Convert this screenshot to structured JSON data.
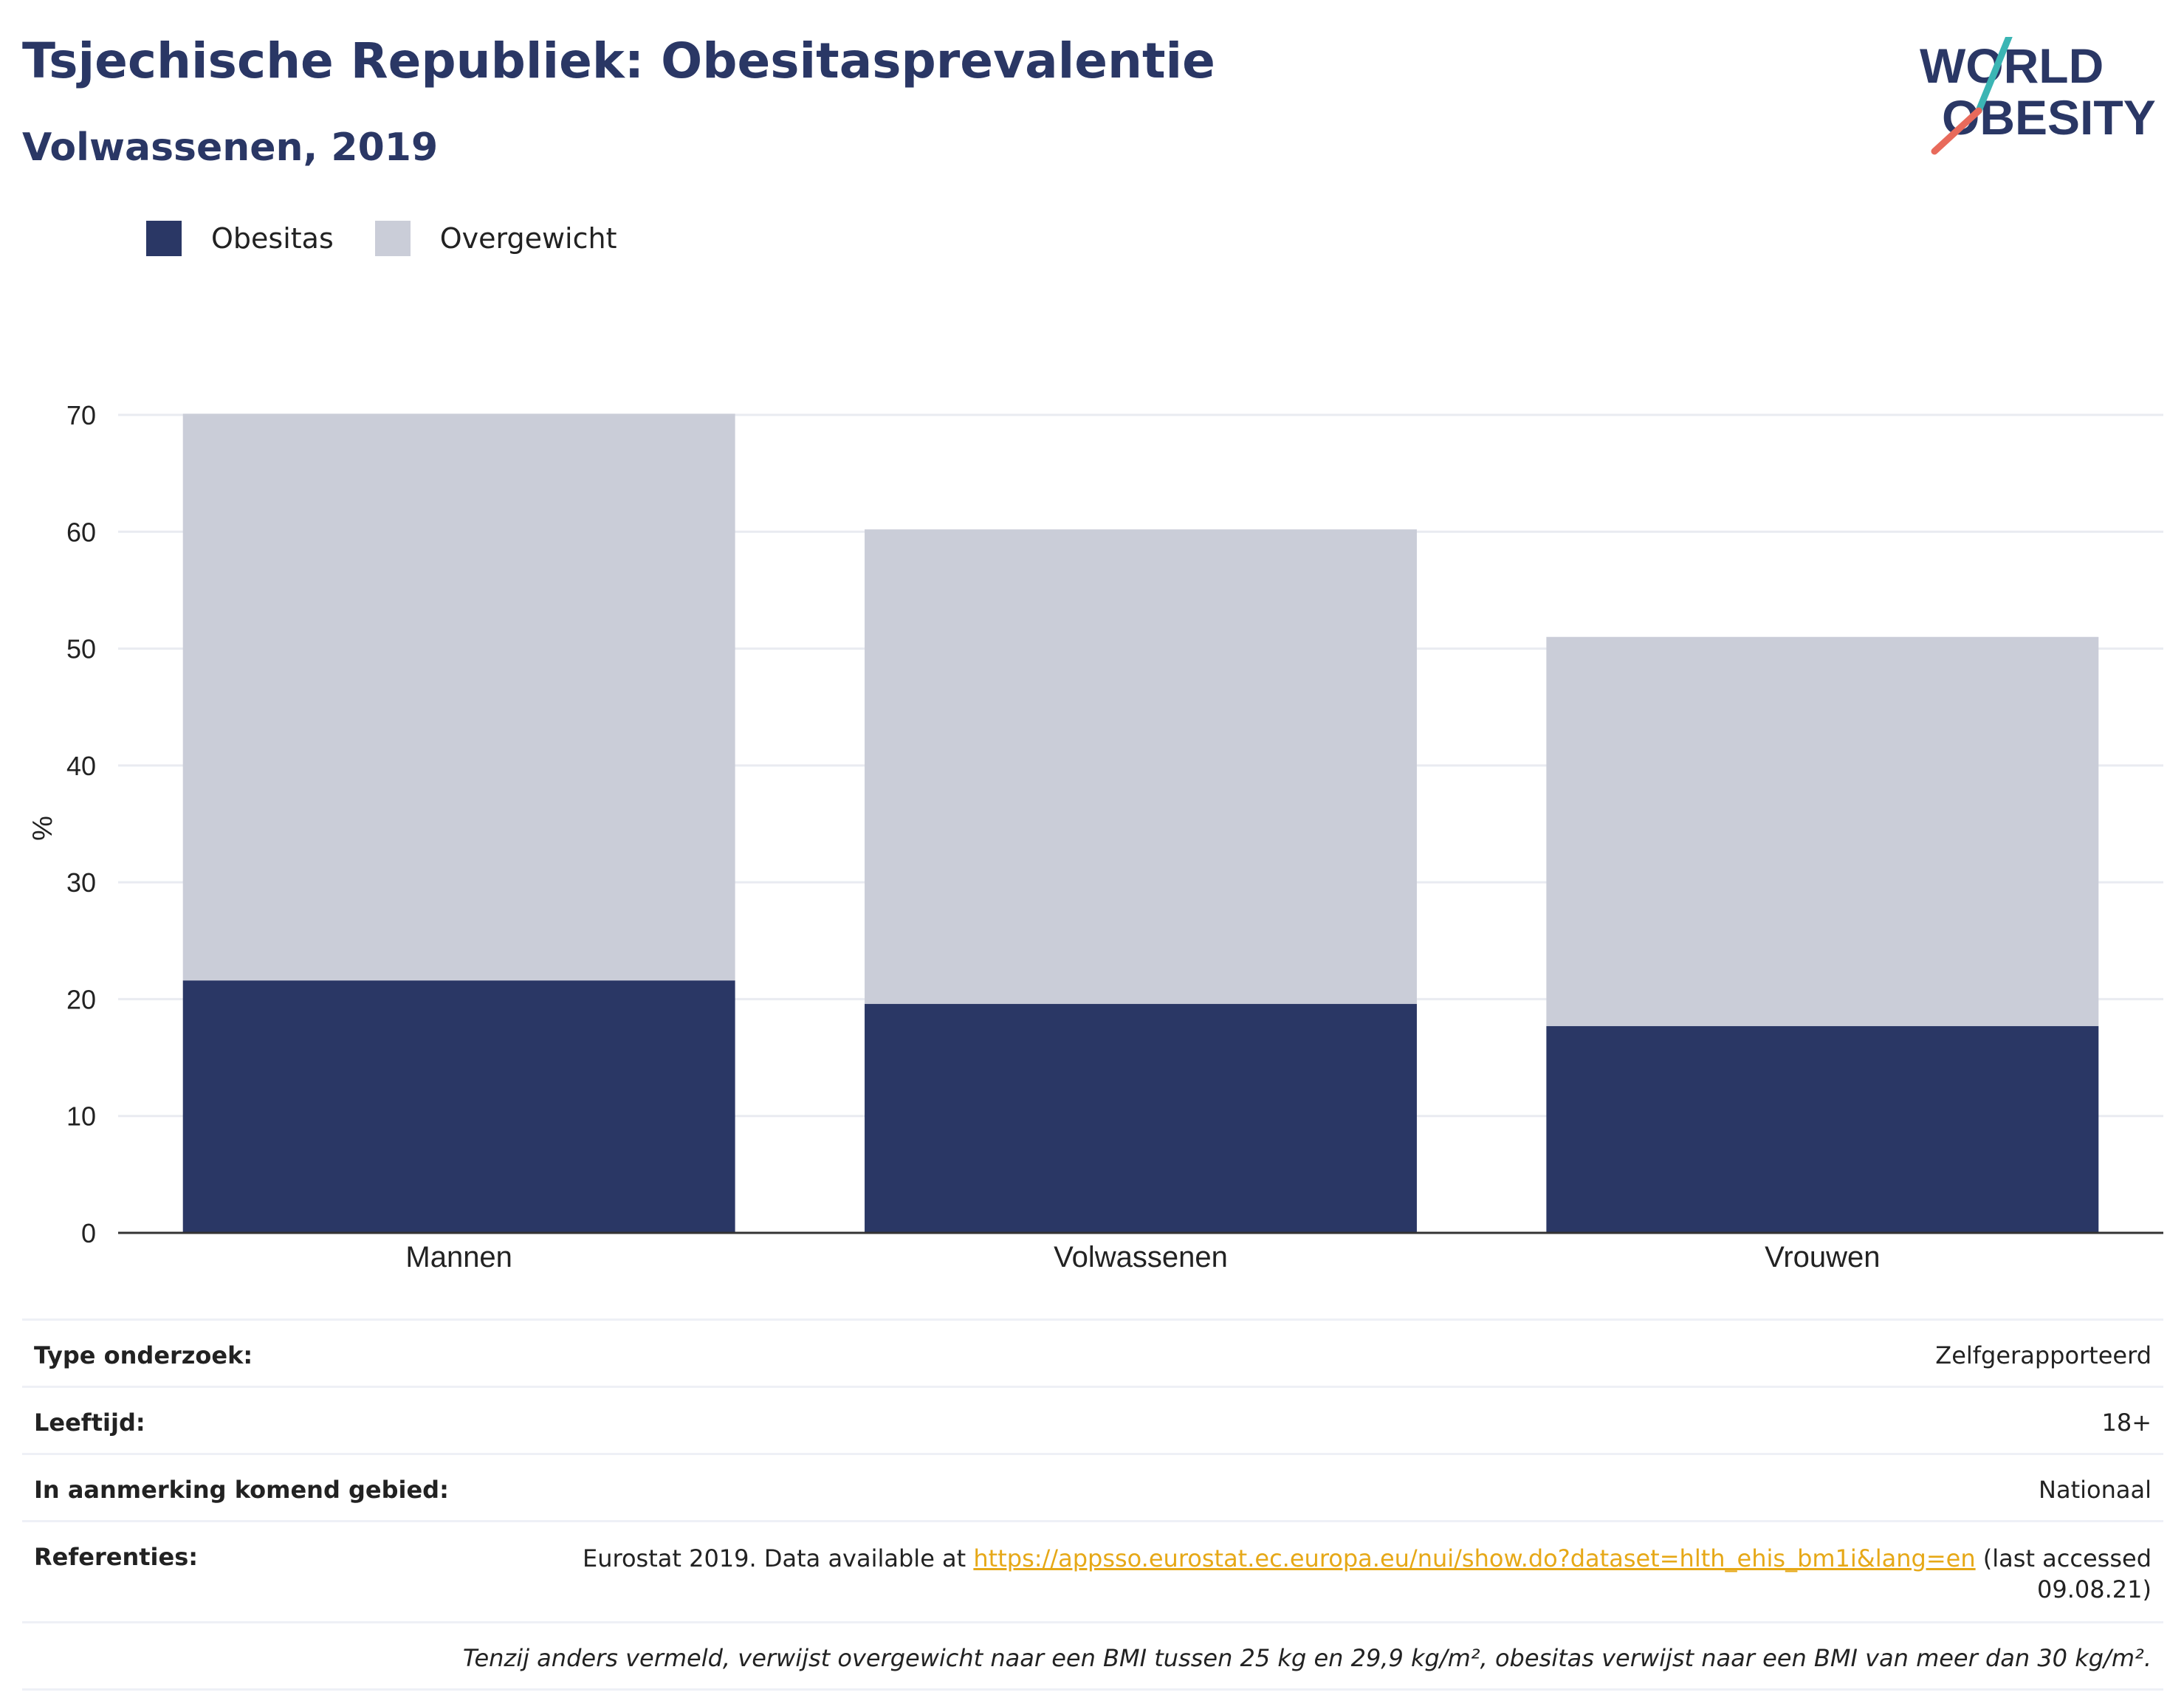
{
  "header": {
    "title": "Tsjechische Republiek: Obesitasprevalentie",
    "subtitle": "Volwassenen, 2019"
  },
  "logo": {
    "line1": "WORLD",
    "line2": "OBESITY",
    "accent_teal": "#3bb5b4",
    "accent_coral": "#e86a5b",
    "text_color": "#2a3765"
  },
  "legend": [
    {
      "label": "Obesitas",
      "color": "#2a3765"
    },
    {
      "label": "Overgewicht",
      "color": "#cacdd8"
    }
  ],
  "chart_data": {
    "type": "bar",
    "stacked": true,
    "categories": [
      "Mannen",
      "Volwassenen",
      "Vrouwen"
    ],
    "series": [
      {
        "name": "Obesitas",
        "color": "#2a3765",
        "values": [
          21.6,
          19.6,
          17.7
        ]
      },
      {
        "name": "Overgewicht",
        "color": "#cacdd8",
        "values": [
          48.5,
          40.6,
          33.3
        ]
      }
    ],
    "ylabel": "%",
    "ylim": [
      0,
      70
    ],
    "yticks": [
      0,
      10,
      20,
      30,
      40,
      50,
      60,
      70
    ],
    "grid": true
  },
  "info": {
    "survey_type_label": "Type onderzoek:",
    "survey_type_value": "Zelfgerapporteerd",
    "age_label": "Leeftijd:",
    "age_value": "18+",
    "area_label": "In aanmerking komend gebied:",
    "area_value": "Nationaal",
    "references_label": "Referenties:",
    "references_prefix": "Eurostat 2019. Data available at ",
    "references_link": "https://appsso.eurostat.ec.europa.eu/nui/show.do?dataset=hlth_ehis_bm1i&lang=en",
    "references_suffix": " (last accessed 09.08.21)",
    "footnote": "Tenzij anders vermeld, verwijst overgewicht naar een BMI tussen 25 kg en 29,9 kg/m², obesitas verwijst naar een BMI van meer dan 30 kg/m²."
  }
}
